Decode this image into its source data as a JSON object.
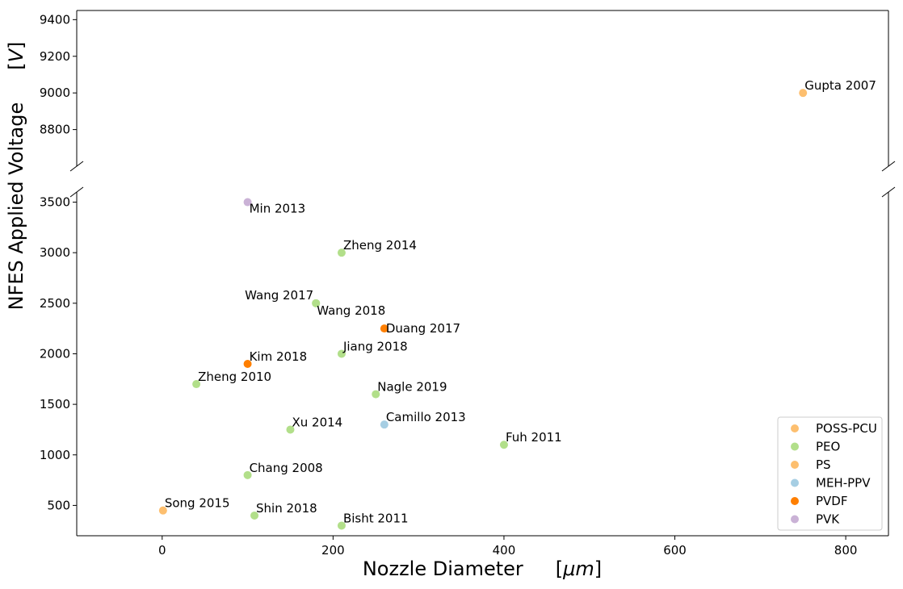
{
  "chart_data": {
    "type": "scatter",
    "x_label": "Nozzle Diameter",
    "x_unit": "μm",
    "y_label": "NFES Applied Voltage",
    "y_unit": "V",
    "xlim": [
      -100,
      850
    ],
    "xticks": [
      0,
      200,
      400,
      600,
      800
    ],
    "panels": [
      {
        "ylim": [
          8600,
          9450
        ],
        "yticks": [
          8800,
          9000,
          9200,
          9400
        ]
      },
      {
        "ylim": [
          200,
          3600
        ],
        "yticks": [
          500,
          1000,
          1500,
          2000,
          2500,
          3000,
          3500
        ]
      }
    ],
    "legend": "lower right",
    "series": [
      {
        "name": "POSS-PCU",
        "color": "#fdbf6f",
        "x": [
          750
        ],
        "values": [
          9000
        ],
        "point_labels": [
          "Gupta 2007"
        ]
      },
      {
        "name": "PEO",
        "color": "#b2df8a",
        "x": [
          210,
          180,
          180,
          210,
          40,
          250,
          150,
          400,
          100,
          108,
          210
        ],
        "values": [
          3000,
          2500,
          2500,
          2000,
          1700,
          1600,
          1250,
          1100,
          800,
          400,
          300
        ],
        "point_labels": [
          "Zheng 2014",
          "Wang 2017",
          "Wang 2018",
          "Jiang 2018",
          "Zheng 2010",
          "Nagle 2019",
          "Xu 2014",
          "Fuh 2011",
          "Chang 2008",
          "Shin 2018",
          "Bisht 2011"
        ]
      },
      {
        "name": "PS",
        "color": "#fdbf6f",
        "x": [
          1
        ],
        "values": [
          450
        ],
        "point_labels": [
          "Song 2015"
        ]
      },
      {
        "name": "MEH-PPV",
        "color": "#a6cee3",
        "x": [
          260
        ],
        "values": [
          1300
        ],
        "point_labels": [
          "Camillo 2013"
        ]
      },
      {
        "name": "PVDF",
        "color": "#ff7f00",
        "x": [
          260,
          100
        ],
        "values": [
          2250,
          1900
        ],
        "point_labels": [
          "Duang 2017",
          "Kim 2018"
        ]
      },
      {
        "name": "PVK",
        "color": "#cab2d6",
        "x": [
          100
        ],
        "values": [
          3500
        ],
        "point_labels": [
          "Min 2013"
        ]
      }
    ]
  }
}
